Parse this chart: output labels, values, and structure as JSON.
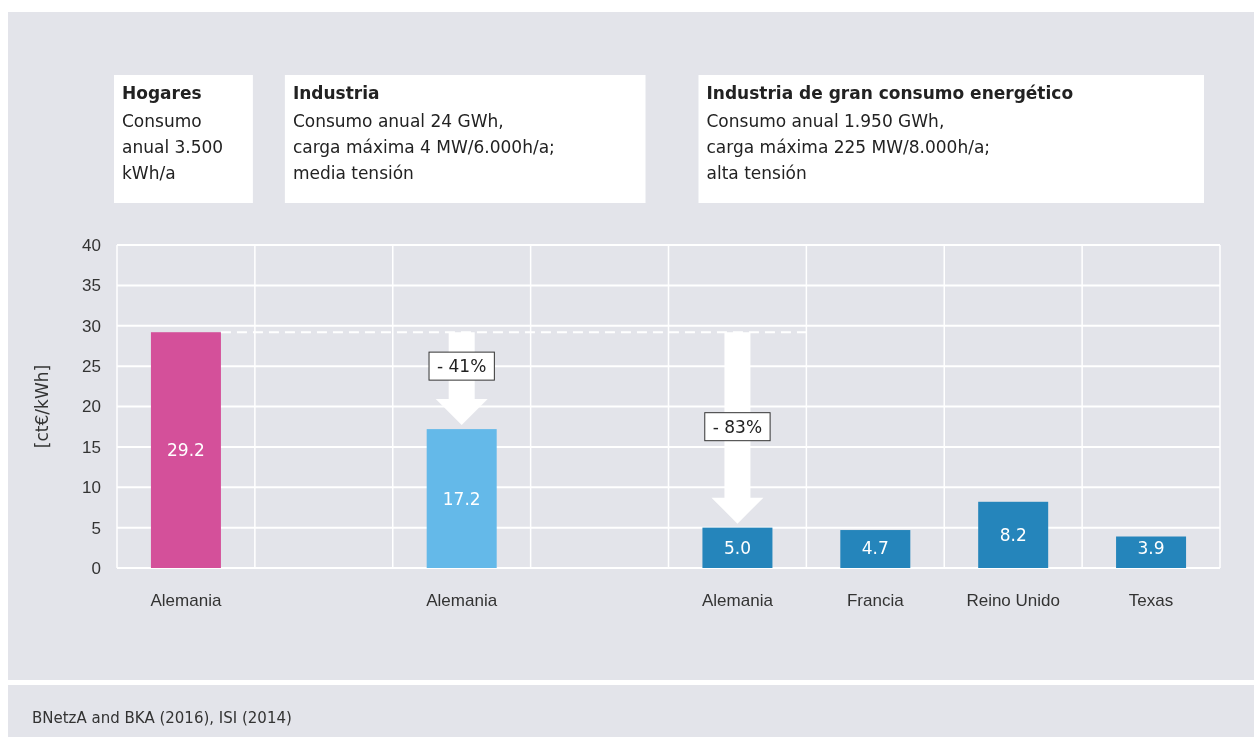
{
  "chart_data": {
    "type": "bar",
    "ylabel": "[ct€/kWh]",
    "categories": [
      "Alemania",
      null,
      "Alemania",
      null,
      "Alemania",
      "Francia",
      "Reino Unido",
      "Texas"
    ],
    "values": [
      29.2,
      null,
      17.2,
      null,
      5.0,
      4.7,
      8.2,
      3.9
    ],
    "value_labels": [
      "29.2",
      null,
      "17.2",
      null,
      "5.0",
      "4.7",
      "8.2",
      "3.9"
    ],
    "colors": [
      "#d4509a",
      null,
      "#64b9e9",
      null,
      "#2585bb",
      "#2585bb",
      "#2585bb",
      "#2585bb"
    ],
    "ylim": [
      0,
      40
    ],
    "yticks": [
      0,
      5,
      10,
      15,
      20,
      25,
      30,
      35,
      40
    ],
    "grid": true,
    "ref_lines": [
      {
        "axis": "y",
        "value": 29.2,
        "color": "#ffffff",
        "line_style": "dashed"
      }
    ],
    "annotations": [
      "Hogares\nConsumo\nanual 3.500\nkWh/a",
      "Industria\nConsumo anual 24 GWh,\ncarga máxima 4 MW/6.000h/a;\nmedia tensión",
      "Industria de gran consumo energético\nConsumo anual 1.950 GWh,\ncarga máxima 225 MW/8.000h/a;\nalta tensión",
      "- 41%",
      "- 83%",
      "BNetzA and BKA (2016), ISI (2014)"
    ]
  }
}
